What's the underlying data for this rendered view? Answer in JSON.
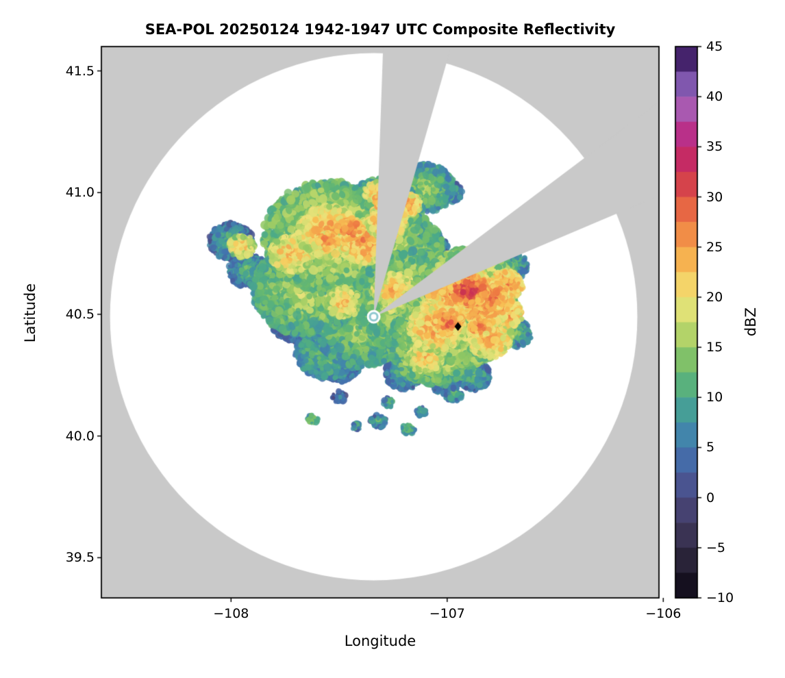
{
  "chart_data": {
    "type": "heatmap",
    "title": "SEA-POL 20250124 1942-1947 UTC Composite Reflectivity",
    "xlabel": "Longitude",
    "ylabel": "Latitude",
    "xlim": [
      -108.6,
      -106.02
    ],
    "ylim": [
      39.335,
      41.6
    ],
    "grid": false,
    "x_ticks": [
      {
        "value": -108,
        "label": "−108"
      },
      {
        "value": -107,
        "label": "−107"
      },
      {
        "value": -106,
        "label": "−106"
      }
    ],
    "y_ticks": [
      {
        "value": 41.5,
        "label": "41.5"
      },
      {
        "value": 41.0,
        "label": "41.0"
      },
      {
        "value": 40.5,
        "label": "40.5"
      },
      {
        "value": 40.0,
        "label": "40.0"
      },
      {
        "value": 39.5,
        "label": "39.5"
      }
    ],
    "colorbar": {
      "label": "dBZ",
      "min": -10,
      "max": 45,
      "step": 2.5,
      "ticks": [
        {
          "value": 45,
          "label": "45"
        },
        {
          "value": 40,
          "label": "40"
        },
        {
          "value": 35,
          "label": "35"
        },
        {
          "value": 30,
          "label": "30"
        },
        {
          "value": 25,
          "label": "25"
        },
        {
          "value": 20,
          "label": "20"
        },
        {
          "value": 15,
          "label": "15"
        },
        {
          "value": 10,
          "label": "10"
        },
        {
          "value": 5,
          "label": "5"
        },
        {
          "value": 0,
          "label": "0"
        },
        {
          "value": -5,
          "label": "−5"
        },
        {
          "value": -10,
          "label": "−10"
        }
      ],
      "stops": [
        [
          -10.0,
          "#0a0612"
        ],
        [
          -7.5,
          "#1f1a2b"
        ],
        [
          -5.0,
          "#322c45"
        ],
        [
          -2.5,
          "#413a61"
        ],
        [
          0.0,
          "#4b4a80"
        ],
        [
          2.5,
          "#485e9f"
        ],
        [
          5.0,
          "#4277b1"
        ],
        [
          7.5,
          "#4292a4"
        ],
        [
          10.0,
          "#4aa98a"
        ],
        [
          12.5,
          "#68b96f"
        ],
        [
          15.0,
          "#97c962"
        ],
        [
          17.5,
          "#cedd70"
        ],
        [
          20.0,
          "#f0e47c"
        ],
        [
          22.5,
          "#f7c355"
        ],
        [
          25.0,
          "#f4a04b"
        ],
        [
          27.5,
          "#ee7a43"
        ],
        [
          30.0,
          "#e05344"
        ],
        [
          32.5,
          "#c93252"
        ],
        [
          35.0,
          "#c02476"
        ],
        [
          37.5,
          "#b23b9b"
        ],
        [
          40.0,
          "#a076c4"
        ],
        [
          42.5,
          "#5f3898"
        ],
        [
          45.0,
          "#2a0d3f"
        ]
      ]
    },
    "colors": {
      "outside_coverage": "#c9c9c9",
      "inside_coverage": "#ffffff",
      "frame": "#000000",
      "marker": "#000000",
      "radar_ring": "#8fc8d0"
    },
    "coverage": {
      "center_lon": -107.34,
      "center_lat": 40.49,
      "radius_deg_lon": 1.22
    },
    "blocked_sectors_azimuth_deg": [
      [
        2,
        16
      ],
      [
        53,
        67
      ]
    ],
    "site_marker": {
      "lon": -106.95,
      "lat": 40.45,
      "shape": "diamond"
    },
    "echoes_format": [
      "lon",
      "lat",
      "radius_deg",
      "dbz"
    ],
    "echoes": [
      [
        -107.55,
        40.82,
        0.3,
        19
      ],
      [
        -107.3,
        40.72,
        0.3,
        18
      ],
      [
        -107.65,
        40.6,
        0.25,
        17
      ],
      [
        -107.15,
        40.55,
        0.28,
        19
      ],
      [
        -106.95,
        40.5,
        0.28,
        20
      ],
      [
        -107.4,
        40.45,
        0.22,
        16
      ],
      [
        -107.3,
        40.92,
        0.18,
        17
      ],
      [
        -106.9,
        40.62,
        0.2,
        21
      ],
      [
        -107.05,
        40.38,
        0.22,
        19
      ],
      [
        -107.55,
        40.35,
        0.15,
        14
      ],
      [
        -107.1,
        41.02,
        0.13,
        15
      ],
      [
        -108.0,
        40.8,
        0.1,
        11
      ],
      [
        -107.92,
        40.68,
        0.09,
        12
      ],
      [
        -107.7,
        40.47,
        0.11,
        10
      ],
      [
        -107.5,
        40.3,
        0.1,
        11
      ],
      [
        -107.2,
        40.26,
        0.09,
        12
      ],
      [
        -106.88,
        40.25,
        0.08,
        12
      ],
      [
        -107.45,
        40.93,
        0.1,
        12
      ],
      [
        -106.68,
        40.42,
        0.07,
        13
      ],
      [
        -107.32,
        40.48,
        0.07,
        9
      ],
      [
        -107.02,
        40.22,
        0.06,
        11
      ],
      [
        -106.7,
        40.7,
        0.07,
        13
      ],
      [
        -107.62,
        40.72,
        0.08,
        13
      ],
      [
        -107.08,
        40.78,
        0.08,
        12
      ],
      [
        -107.55,
        40.84,
        0.14,
        25
      ],
      [
        -107.38,
        40.8,
        0.12,
        26
      ],
      [
        -107.72,
        40.75,
        0.1,
        24
      ],
      [
        -107.95,
        40.78,
        0.06,
        23
      ],
      [
        -107.28,
        40.88,
        0.09,
        26
      ],
      [
        -106.95,
        40.6,
        0.14,
        27
      ],
      [
        -106.82,
        40.55,
        0.12,
        28
      ],
      [
        -107.05,
        40.45,
        0.13,
        25
      ],
      [
        -106.8,
        40.4,
        0.1,
        25
      ],
      [
        -107.25,
        40.6,
        0.09,
        24
      ],
      [
        -107.48,
        40.55,
        0.08,
        23
      ],
      [
        -106.73,
        40.62,
        0.08,
        27
      ],
      [
        -107.32,
        41.0,
        0.06,
        25
      ],
      [
        -107.18,
        40.95,
        0.06,
        26
      ],
      [
        -106.72,
        40.5,
        0.07,
        26
      ],
      [
        -107.1,
        40.32,
        0.08,
        23
      ],
      [
        -107.25,
        40.55,
        0.06,
        22
      ],
      [
        -106.9,
        40.6,
        0.09,
        31
      ],
      [
        -106.8,
        40.57,
        0.07,
        30
      ],
      [
        -107.0,
        40.47,
        0.07,
        29
      ],
      [
        -107.45,
        40.85,
        0.06,
        29
      ],
      [
        -107.3,
        40.97,
        0.04,
        29
      ],
      [
        -106.85,
        40.45,
        0.05,
        29
      ],
      [
        -107.55,
        40.8,
        0.05,
        28
      ],
      [
        -106.93,
        40.65,
        0.05,
        30
      ],
      [
        -107.62,
        40.07,
        0.025,
        17
      ],
      [
        -107.32,
        40.06,
        0.035,
        12
      ],
      [
        -107.18,
        40.03,
        0.03,
        14
      ],
      [
        -107.12,
        40.1,
        0.025,
        11
      ],
      [
        -106.97,
        40.17,
        0.04,
        12
      ],
      [
        -107.5,
        40.16,
        0.03,
        10
      ],
      [
        -107.27,
        40.14,
        0.025,
        13
      ],
      [
        -107.42,
        40.04,
        0.02,
        12
      ],
      [
        -107.12,
        41.08,
        0.05,
        13
      ],
      [
        -106.98,
        41.0,
        0.05,
        12
      ]
    ]
  }
}
